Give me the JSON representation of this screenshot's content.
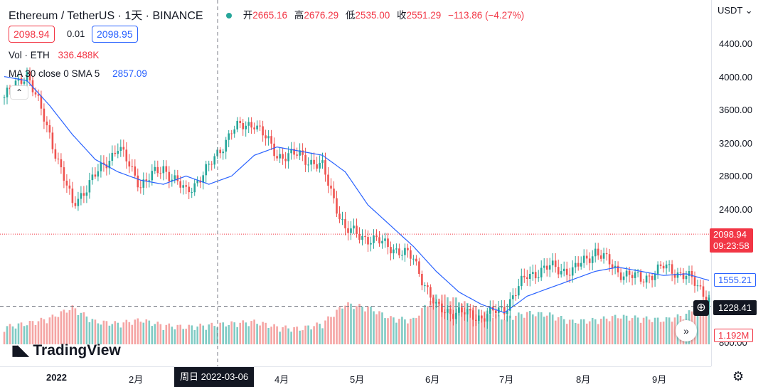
{
  "header": {
    "symbol_title": "Ethereum / TetherUS · 1天 · BINANCE"
  },
  "ohlc": {
    "open_label": "开",
    "open": "2665.16",
    "high_label": "高",
    "high": "2676.29",
    "low_label": "低",
    "low": "2535.00",
    "close_label": "收",
    "close": "2551.29",
    "change": "−113.86 (−4.27%)"
  },
  "order": {
    "sell": "2098.94",
    "spread": "0.01",
    "buy": "2098.95"
  },
  "volume": {
    "label": "Vol · ETH",
    "value": "336.488K"
  },
  "ma": {
    "label": "MA 30 close 0 SMA 5",
    "value": "2857.09"
  },
  "currency": "USDT",
  "price_axis": {
    "ticks": [
      "4400.00",
      "4000.00",
      "3600.00",
      "3200.00",
      "2800.00",
      "2400.00",
      "800.00"
    ],
    "last_price": "2098.94",
    "countdown": "09:23:58",
    "ma_value": "1555.21",
    "crosshair_price": "1228.41",
    "volume_value": "1.192M"
  },
  "time_axis": {
    "ticks": [
      "2022",
      "2月",
      "4月",
      "5月",
      "6月",
      "7月",
      "8月",
      "9月"
    ],
    "crosshair_date": "周日 2022-03-06"
  },
  "brand": {
    "name": "TradingView"
  },
  "colors": {
    "up": "#26a69a",
    "down": "#ef5350",
    "ma": "#2962ff",
    "vol_up": "#80cbc4",
    "vol_down": "#f5a5a4"
  },
  "chart_data": {
    "type": "candlestick",
    "ylim": [
      800,
      4600
    ],
    "x": [
      "2022-01-01",
      "2022-01-09",
      "2022-01-16",
      "2022-01-24",
      "2022-02-01",
      "2022-02-09",
      "2022-02-17",
      "2022-02-25",
      "2022-03-06",
      "2022-03-15",
      "2022-03-23",
      "2022-04-01",
      "2022-04-09",
      "2022-04-18",
      "2022-04-26",
      "2022-05-05",
      "2022-05-13",
      "2022-05-22",
      "2022-06-01",
      "2022-06-10",
      "2022-06-19",
      "2022-06-28",
      "2022-07-07",
      "2022-07-16",
      "2022-07-25",
      "2022-08-03",
      "2022-08-12",
      "2022-08-20",
      "2022-08-29",
      "2022-09-07",
      "2022-09-14",
      "2022-09-21"
    ],
    "close": [
      3750,
      4050,
      3300,
      2450,
      2800,
      3150,
      2700,
      2900,
      2600,
      2900,
      3350,
      3450,
      3050,
      3050,
      2900,
      2150,
      2050,
      1950,
      1800,
      1200,
      1150,
      1100,
      1200,
      1600,
      1700,
      1650,
      1900,
      1650,
      1550,
      1700,
      1600,
      1330
    ],
    "ma": [
      4000,
      3950,
      3650,
      3300,
      3000,
      2850,
      2750,
      2700,
      2800,
      2700,
      2800,
      3050,
      3150,
      3100,
      3050,
      2850,
      2450,
      2200,
      1950,
      1650,
      1400,
      1250,
      1150,
      1350,
      1450,
      1550,
      1650,
      1700,
      1650,
      1600,
      1620,
      1540
    ],
    "volume": [
      0.35,
      0.45,
      0.6,
      0.9,
      0.5,
      0.45,
      0.55,
      0.4,
      0.35,
      0.4,
      0.45,
      0.5,
      0.35,
      0.3,
      0.45,
      1.0,
      0.9,
      0.6,
      0.55,
      1.3,
      1.1,
      0.8,
      0.6,
      0.75,
      0.7,
      0.5,
      0.55,
      0.65,
      0.6,
      0.55,
      0.7,
      1.19
    ]
  }
}
